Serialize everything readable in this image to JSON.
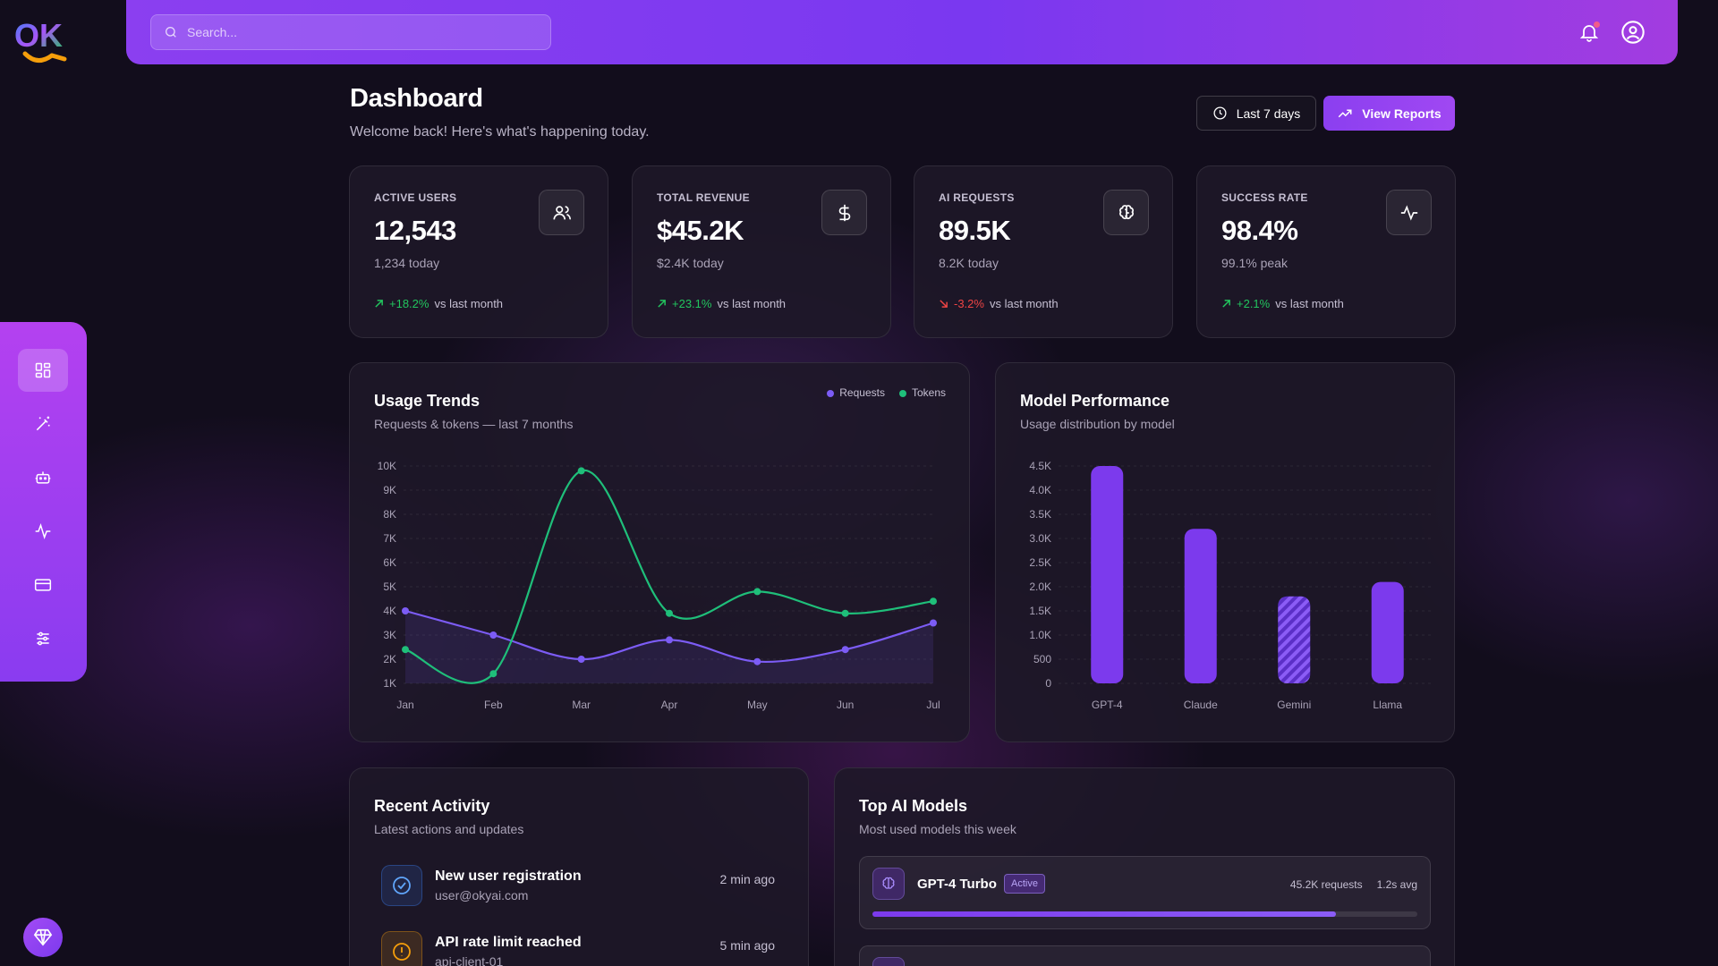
{
  "app": {
    "logo_text": "OK"
  },
  "search": {
    "placeholder": "Search..."
  },
  "header": {
    "title": "Dashboard",
    "subtitle": "Welcome back! Here's what's happening today.",
    "range_label": "Last 7 days",
    "reports_label": "View Reports"
  },
  "sidebar": {
    "items": [
      {
        "name": "dashboard",
        "icon": "grid-icon",
        "active": true
      },
      {
        "name": "magic",
        "icon": "magic-wand-icon",
        "active": false
      },
      {
        "name": "bots",
        "icon": "robot-icon",
        "active": false
      },
      {
        "name": "activity",
        "icon": "activity-icon",
        "active": false
      },
      {
        "name": "billing",
        "icon": "credit-card-icon",
        "active": false
      },
      {
        "name": "settings",
        "icon": "sliders-icon",
        "active": false
      }
    ]
  },
  "stats": [
    {
      "label": "ACTIVE USERS",
      "value": "12,543",
      "sub": "1,234 today",
      "delta": "+18.2%",
      "delta_dir": "up",
      "delta_suffix": "vs last month",
      "icon": "users-icon"
    },
    {
      "label": "TOTAL REVENUE",
      "value": "$45.2K",
      "sub": "$2.4K today",
      "delta": "+23.1%",
      "delta_dir": "up",
      "delta_suffix": "vs last month",
      "icon": "dollar-icon"
    },
    {
      "label": "AI REQUESTS",
      "value": "89.5K",
      "sub": "8.2K today",
      "delta": "-3.2%",
      "delta_dir": "down",
      "delta_suffix": "vs last month",
      "icon": "brain-icon"
    },
    {
      "label": "SUCCESS RATE",
      "value": "98.4%",
      "sub": "99.1% peak",
      "delta": "+2.1%",
      "delta_dir": "up",
      "delta_suffix": "vs last month",
      "icon": "pulse-icon"
    }
  ],
  "usage": {
    "title": "Usage Trends",
    "subtitle": "Requests & tokens — last 7 months"
  },
  "model_perf": {
    "title": "Model Performance",
    "subtitle": "Usage distribution by model"
  },
  "chart_data": [
    {
      "type": "line",
      "title": "Usage Trends",
      "subtitle": "Requests & tokens — last 7 months",
      "x": [
        "Jan",
        "Feb",
        "Mar",
        "Apr",
        "May",
        "Jun",
        "Jul"
      ],
      "yticks": [
        "1K",
        "2K",
        "3K",
        "4K",
        "5K",
        "6K",
        "7K",
        "8K",
        "9K",
        "10K"
      ],
      "ylim": [
        1000,
        10000
      ],
      "legend_position": "top-right",
      "grid": true,
      "series": [
        {
          "name": "Requests",
          "color": "#7c5cf5",
          "values": [
            4000,
            3000,
            2000,
            2800,
            1900,
            2400,
            3500
          ]
        },
        {
          "name": "Tokens",
          "color": "#1fbf7a",
          "values": [
            2400,
            1400,
            9800,
            3900,
            4800,
            3900,
            4400
          ]
        }
      ]
    },
    {
      "type": "bar",
      "title": "Model Performance",
      "subtitle": "Usage distribution by model",
      "categories": [
        "GPT-4",
        "Claude",
        "Gemini",
        "Llama"
      ],
      "values": [
        4500,
        3200,
        1800,
        2100
      ],
      "yticks": [
        "0",
        "500",
        "1.0K",
        "1.5K",
        "2.0K",
        "2.5K",
        "3.0K",
        "3.5K",
        "4.0K",
        "4.5K"
      ],
      "ylim": [
        0,
        4500
      ],
      "highlighted": "Gemini",
      "bar_color": "#7c3aed",
      "grid": true
    }
  ],
  "activity": {
    "title": "Recent Activity",
    "subtitle": "Latest actions and updates",
    "items": [
      {
        "title": "New user registration",
        "desc": "user@okyai.com",
        "time": "2 min ago",
        "icon": "check-circle-icon"
      },
      {
        "title": "API rate limit reached",
        "desc": "api-client-01",
        "time": "5 min ago",
        "icon": "alert-icon"
      }
    ]
  },
  "top_models": {
    "title": "Top AI Models",
    "subtitle": "Most used models this week",
    "items": [
      {
        "name": "GPT-4 Turbo",
        "badge": "Active",
        "requests": "45.2K requests",
        "avg": "1.2s avg",
        "share": 0.85
      }
    ]
  }
}
